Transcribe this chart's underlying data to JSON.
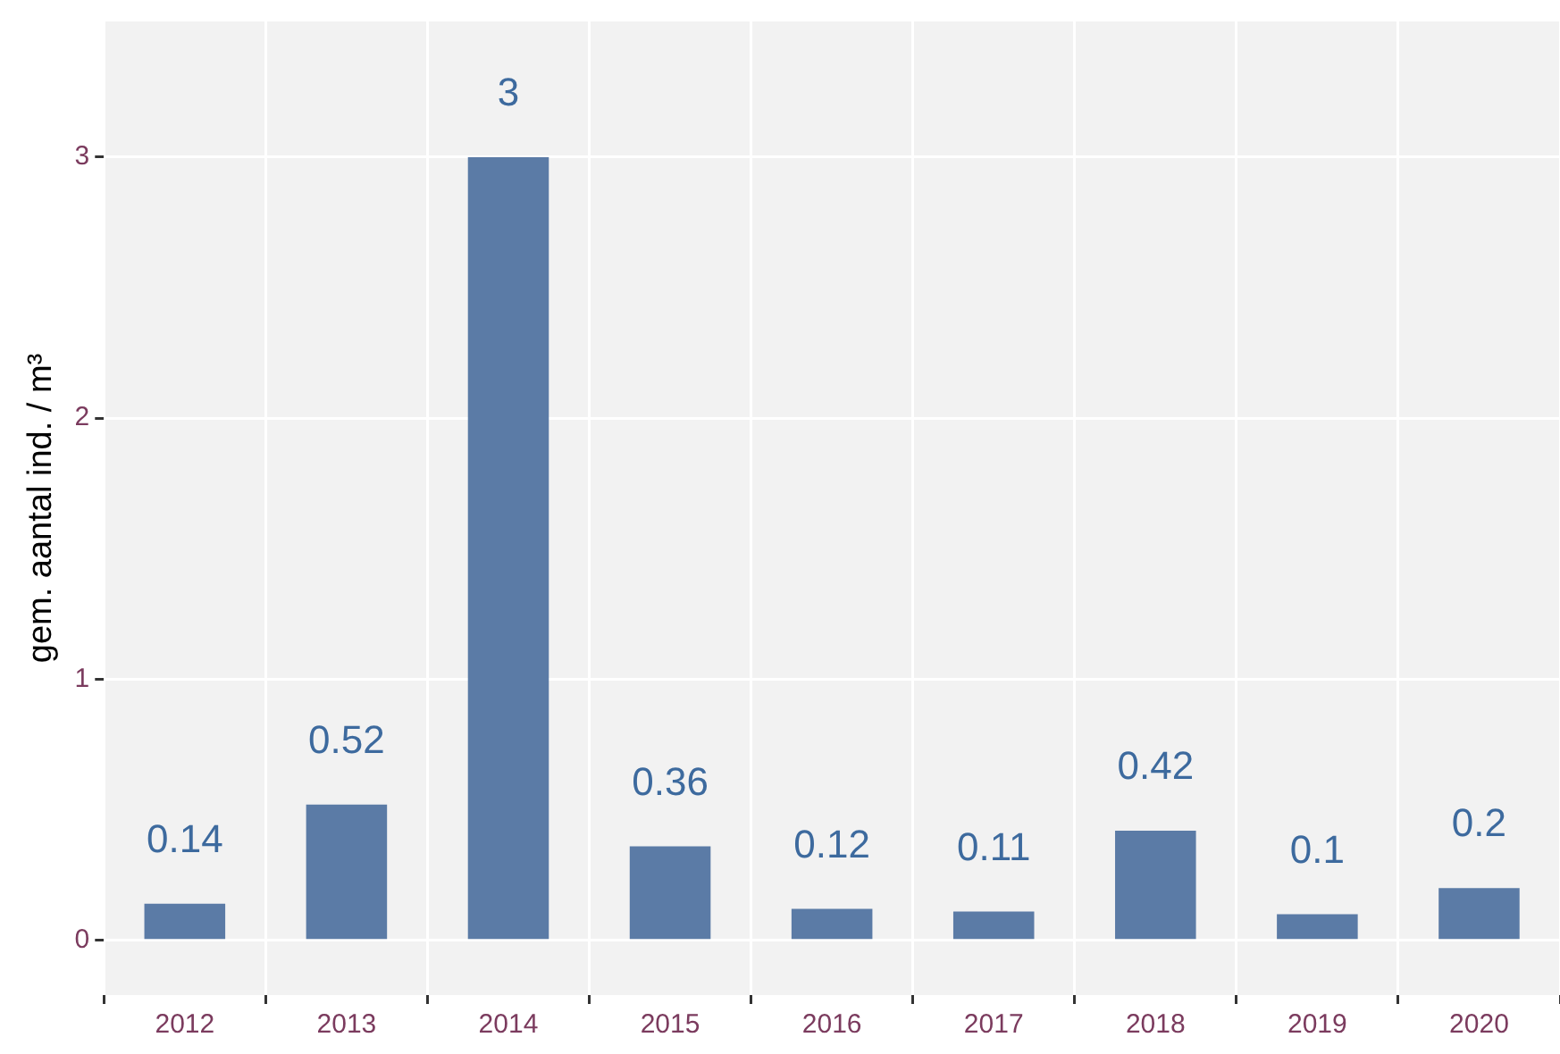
{
  "chart_data": {
    "type": "bar",
    "ylabel": "gem. aantal ind. / m³",
    "categories": [
      "2012",
      "2013",
      "2014",
      "2015",
      "2016",
      "2017",
      "2018",
      "2019",
      "2020"
    ],
    "values": [
      0.14,
      0.52,
      3,
      0.36,
      0.12,
      0.11,
      0.42,
      0.1,
      0.2
    ],
    "color": "#5b7ba6",
    "ylim": [
      -0.21,
      3.52
    ],
    "yticks": [
      0,
      1,
      2,
      3
    ],
    "grid": true,
    "data_labels": true,
    "legend": false
  }
}
